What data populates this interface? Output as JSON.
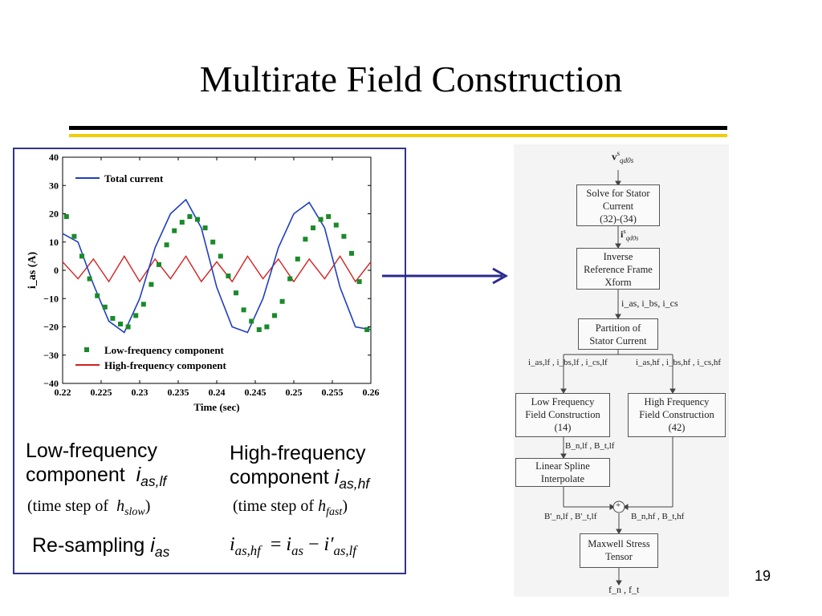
{
  "slide": {
    "title": "Multirate Field Construction",
    "page_number": "19"
  },
  "chart_data": {
    "type": "line",
    "xlabel": "Time (sec)",
    "ylabel": "i_as (A)",
    "xlim": [
      0.22,
      0.26
    ],
    "ylim": [
      -40,
      40
    ],
    "x_ticks": [
      "0.22",
      "0.225",
      "0.23",
      "0.235",
      "0.24",
      "0.245",
      "0.25",
      "0.255",
      "0.26"
    ],
    "y_ticks": [
      "40",
      "30",
      "20",
      "10",
      "0",
      "−10",
      "−20",
      "−30",
      "−40"
    ],
    "legend": {
      "total": "Total current",
      "low": "Low-frequency component",
      "high": "High-frequency component"
    },
    "series": [
      {
        "name": "Total current",
        "color": "#1f3fbf",
        "x": [
          0.22,
          0.222,
          0.224,
          0.226,
          0.228,
          0.23,
          0.232,
          0.234,
          0.236,
          0.238,
          0.24,
          0.242,
          0.244,
          0.246,
          0.248,
          0.25,
          0.252,
          0.254,
          0.256,
          0.258,
          0.26
        ],
        "values": [
          13,
          10,
          -5,
          -18,
          -22,
          -10,
          8,
          20,
          25,
          15,
          -6,
          -20,
          -22,
          -10,
          8,
          20,
          24,
          15,
          -6,
          -20,
          -21
        ]
      },
      {
        "name": "Low-frequency component",
        "color": "#1a8a2a",
        "x": [
          0.2205,
          0.2215,
          0.2225,
          0.2235,
          0.2245,
          0.2255,
          0.2265,
          0.2275,
          0.2285,
          0.2295,
          0.2305,
          0.2315,
          0.2325,
          0.2335,
          0.2345,
          0.2355,
          0.2365,
          0.2375,
          0.2385,
          0.2395,
          0.2405,
          0.2415,
          0.2425,
          0.2435,
          0.2445,
          0.2455,
          0.2465,
          0.2475,
          0.2485,
          0.2495,
          0.2505,
          0.2515,
          0.2525,
          0.2535,
          0.2545,
          0.2555,
          0.2565,
          0.2575,
          0.2585,
          0.2595
        ],
        "values": [
          19,
          12,
          5,
          -3,
          -9,
          -13,
          -17,
          -19,
          -20,
          -16,
          -12,
          -5,
          2,
          9,
          14,
          17,
          19,
          18,
          15,
          10,
          5,
          -2,
          -8,
          -14,
          -18,
          -21,
          -20,
          -16,
          -11,
          -3,
          4,
          11,
          15,
          18,
          19,
          16,
          12,
          6,
          -4,
          -21
        ]
      },
      {
        "name": "High-frequency component",
        "color": "#d42020",
        "x": [
          0.22,
          0.222,
          0.224,
          0.226,
          0.228,
          0.23,
          0.232,
          0.234,
          0.236,
          0.238,
          0.24,
          0.242,
          0.244,
          0.246,
          0.248,
          0.25,
          0.252,
          0.254,
          0.256,
          0.258,
          0.26
        ],
        "values": [
          3,
          -3,
          4,
          -4,
          5,
          -4,
          4,
          -3,
          5,
          -4,
          3,
          -4,
          5,
          -3,
          4,
          -4,
          4,
          -3,
          5,
          -4,
          3
        ]
      }
    ]
  },
  "left_labels": {
    "low_line1": "Low-frequency",
    "low_line2": "component",
    "low_sym": "i",
    "low_sub": "as,lf",
    "low_ts": "(time step of",
    "low_ts_sym": "h",
    "low_ts_sub": "slow",
    "low_ts_close": ")",
    "high_line1": "High-frequency",
    "high_line2": "component",
    "high_sym": "i",
    "high_sub": "as,hf",
    "high_ts": "(time step of",
    "high_ts_sym": "h",
    "high_ts_sub": "fast",
    "high_ts_close": ")",
    "resample": "Re-sampling",
    "resample_sym": "i",
    "resample_sub": "as",
    "eq_lhs_sub": "as,hf",
    "eq_mid_sub": "as",
    "eq_rhs_sub": "as,lf"
  },
  "flowchart": {
    "input_sym": "v",
    "input_sup": "s",
    "input_sub": "qd0s",
    "box1": [
      "Solve for Stator",
      "Current",
      "(32)-(34)"
    ],
    "after1_sym": "i",
    "after1_sup": "s",
    "after1_sub": "qd0s",
    "box2": [
      "Inverse",
      "Reference Frame",
      "Xform"
    ],
    "after2": "i_as, i_bs, i_cs",
    "box3": [
      "Partition of",
      "Stator Current"
    ],
    "left_branch": "i_as,lf , i_bs,lf , i_cs,lf",
    "right_branch": "i_as,hf , i_bs,hf , i_cs,hf",
    "box_low": [
      "Low Frequency",
      "Field Construction",
      "(14)"
    ],
    "box_high": [
      "High Frequency",
      "Field Construction",
      "(42)"
    ],
    "after_low": "B_n,lf , B_t,lf",
    "box_spline": [
      "Linear Spline",
      "Interpolate"
    ],
    "after_spline": "B'_n,lf , B'_t,lf",
    "after_high": "B_n,hf , B_t,hf",
    "sum": "+",
    "box_maxwell": [
      "Maxwell Stress",
      "Tensor"
    ],
    "output": "f_n , f_t"
  }
}
